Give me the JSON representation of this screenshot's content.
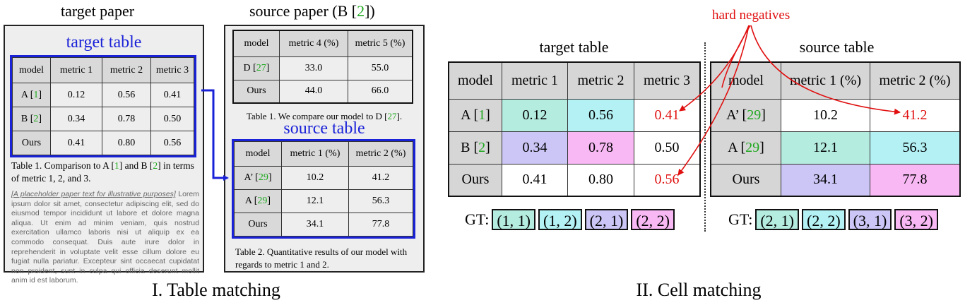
{
  "colors": {
    "mint": "#b5ece0",
    "cyan": "#b3f1f4",
    "lavender": "#cbc6f5",
    "pink": "#f7b8f4",
    "citation": "#1fa81f",
    "highlight_blue": "#1a22d8",
    "hard_negative_red": "#e01010",
    "header_gray": "#d6d6d6"
  },
  "part1": {
    "label": "I. Table matching",
    "target_paper": {
      "heading": "target paper",
      "table_title": "target table",
      "headers": [
        "model",
        "metric 1",
        "metric 2",
        "metric 3"
      ],
      "rows": [
        {
          "model": "A [",
          "cite": "1",
          "tail": "]",
          "values": [
            "0.12",
            "0.56",
            "0.41"
          ]
        },
        {
          "model": "B [",
          "cite": "2",
          "tail": "]",
          "values": [
            "0.34",
            "0.78",
            "0.50"
          ]
        },
        {
          "model": "Ours",
          "cite": "",
          "tail": "",
          "values": [
            "0.41",
            "0.80",
            "0.56"
          ]
        }
      ],
      "caption": {
        "p1": "Table 1. Comparison to A [",
        "c1": "1",
        "p2": "] and B [",
        "c2": "2",
        "p3": "] in terms of metric 1, 2, and 3."
      },
      "placeholder": "[A placeholder paper text for illustrative purposes]",
      "lorem": " Lorem ipsum dolor sit amet, consectetur adipiscing elit, sed do eiusmod tempor incididunt ut labore et dolore magna aliqua. Ut enim ad minim veniam, quis nostrud exercitation ullamco laboris nisi ut aliquip ex ea commodo consequat. Duis aute irure dolor in reprehenderit in voluptate velit esse cillum dolore eu fugiat nulla pariatur. Excepteur sint occaecat cupidatat non proident, sunt in culpa qui officia deserunt mollit anim id est laborum."
    },
    "source_paper": {
      "heading_pre": "source paper (B [",
      "heading_cite": "2",
      "heading_post": "])",
      "table1": {
        "headers": [
          "model",
          "metric 4 (%)",
          "metric 5 (%)"
        ],
        "rows": [
          {
            "model": "D [",
            "cite": "27",
            "tail": "]",
            "values": [
              "33.0",
              "55.0"
            ]
          },
          {
            "model": "Ours",
            "cite": "",
            "tail": "",
            "values": [
              "44.0",
              "66.0"
            ]
          }
        ],
        "caption": {
          "p1": "Table 1. We compare our model to D [",
          "c1": "27",
          "p2": "]."
        }
      },
      "table_title": "source table",
      "table2": {
        "headers": [
          "model",
          "metric 1 (%)",
          "metric 2 (%)"
        ],
        "rows": [
          {
            "model": "A’ [",
            "cite": "29",
            "tail": "]",
            "values": [
              "10.2",
              "41.2"
            ]
          },
          {
            "model": "A [",
            "cite": "29",
            "tail": "]",
            "values": [
              "12.1",
              "56.3"
            ]
          },
          {
            "model": "Ours",
            "cite": "",
            "tail": "",
            "values": [
              "34.1",
              "77.8"
            ]
          }
        ],
        "caption": "Table 2. Quantitative results of our model with regards to metric 1 and 2."
      }
    }
  },
  "part2": {
    "label": "II. Cell matching",
    "annotation": "hard negatives",
    "target": {
      "title": "target table",
      "headers": [
        "model",
        "metric 1",
        "metric 2",
        "metric 3"
      ],
      "rows": [
        {
          "model": "A [",
          "cite": "1",
          "tail": "]",
          "values": [
            "0.12",
            "0.56",
            "0.41"
          ]
        },
        {
          "model": "B [",
          "cite": "2",
          "tail": "]",
          "values": [
            "0.34",
            "0.78",
            "0.50"
          ]
        },
        {
          "model": "Ours",
          "cite": "",
          "tail": "",
          "values": [
            "0.41",
            "0.80",
            "0.56"
          ]
        }
      ],
      "gt_label": "GT:",
      "gt": [
        "(1, 1)",
        "(1, 2)",
        "(2, 1)",
        "(2, 2)"
      ]
    },
    "source": {
      "title": "source table",
      "headers": [
        "model",
        "metric 1 (%)",
        "metric 2 (%)"
      ],
      "rows": [
        {
          "model": "A’ [",
          "cite": "29",
          "tail": "]",
          "values": [
            "10.2",
            "41.2"
          ]
        },
        {
          "model": "A [",
          "cite": "29",
          "tail": "]",
          "values": [
            "12.1",
            "56.3"
          ]
        },
        {
          "model": "Ours",
          "cite": "",
          "tail": "",
          "values": [
            "34.1",
            "77.8"
          ]
        }
      ],
      "gt_label": "GT:",
      "gt": [
        "(2, 1)",
        "(2, 2)",
        "(3, 1)",
        "(3, 2)"
      ]
    }
  }
}
